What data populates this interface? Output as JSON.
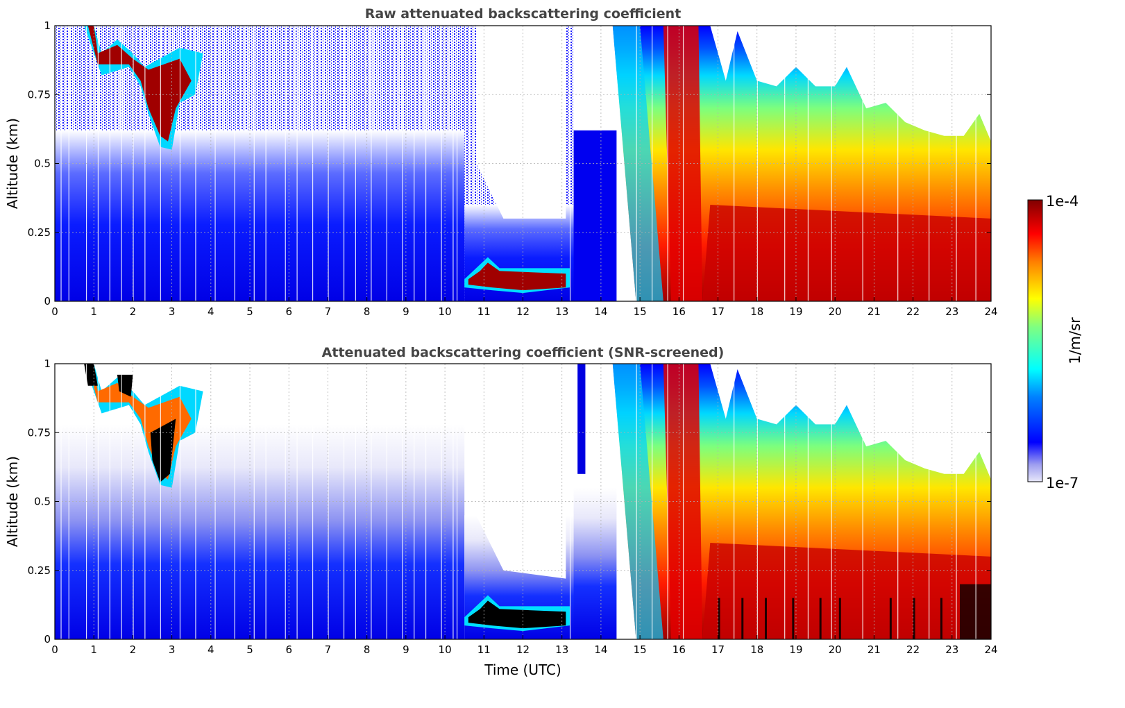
{
  "chart_data": [
    {
      "type": "heatmap",
      "title": "Raw attenuated backscattering coefficient",
      "xlabel": "",
      "ylabel": "Altitude (km)",
      "xlim": [
        0,
        24
      ],
      "ylim": [
        0,
        1
      ],
      "x_ticks": [
        "0",
        "1",
        "2",
        "3",
        "4",
        "5",
        "6",
        "7",
        "8",
        "9",
        "10",
        "11",
        "12",
        "13",
        "14",
        "15",
        "16",
        "17",
        "18",
        "19",
        "20",
        "21",
        "22",
        "23",
        "24"
      ],
      "y_ticks": [
        "0",
        "0.25",
        "0.5",
        "0.75",
        "1"
      ],
      "grid": true,
      "colormap": "jet",
      "features": [
        {
          "name": "elevated aerosol / cloud",
          "time_utc": [
            0.7,
            3.9
          ],
          "altitude_km": [
            0.55,
            1.0
          ]
        },
        {
          "name": "low cloud layer",
          "time_utc": [
            10.5,
            13.2
          ],
          "altitude_km": [
            0.05,
            0.16
          ]
        },
        {
          "name": "clear / no signal gap",
          "time_utc": [
            10.8,
            13.0
          ],
          "altitude_km": [
            0.3,
            1.0
          ]
        },
        {
          "name": "strong backscatter (afternoon aerosol)",
          "time_utc": [
            14.3,
            24
          ],
          "altitude_km": [
            0,
            1.0
          ]
        },
        {
          "name": "boundary layer top decreasing",
          "time_utc": [
            17,
            24
          ],
          "altitude_km": [
            0.55,
            0.85
          ]
        }
      ]
    },
    {
      "type": "heatmap",
      "title": "Attenuated backscattering coefficient (SNR-screened)",
      "xlabel": "Time (UTC)",
      "ylabel": "Altitude (km)",
      "xlim": [
        0,
        24
      ],
      "ylim": [
        0,
        1
      ],
      "x_ticks": [
        "0",
        "1",
        "2",
        "3",
        "4",
        "5",
        "6",
        "7",
        "8",
        "9",
        "10",
        "11",
        "12",
        "13",
        "14",
        "15",
        "16",
        "17",
        "18",
        "19",
        "20",
        "21",
        "22",
        "23",
        "24"
      ],
      "y_ticks": [
        "0",
        "0.25",
        "0.5",
        "0.75",
        "1"
      ],
      "grid": true,
      "colormap": "jet",
      "features": [
        {
          "name": "saturated cloud (black)",
          "time_utc": [
            2.5,
            3.3
          ],
          "altitude_km": [
            0.55,
            0.85
          ]
        },
        {
          "name": "saturated low cloud (black)",
          "time_utc": [
            10.5,
            13.0
          ],
          "altitude_km": [
            0.02,
            0.12
          ]
        },
        {
          "name": "screened noise (white)",
          "time_utc": [
            4,
            14
          ],
          "altitude_km": [
            0.5,
            1.0
          ]
        },
        {
          "name": "strong backscatter (afternoon aerosol)",
          "time_utc": [
            14.3,
            24
          ],
          "altitude_km": [
            0,
            1.0
          ]
        }
      ]
    }
  ],
  "colorbar": {
    "max_label": "1e-4",
    "min_label": "1e-7",
    "unit_label": "1/m/sr",
    "scale": "log"
  }
}
